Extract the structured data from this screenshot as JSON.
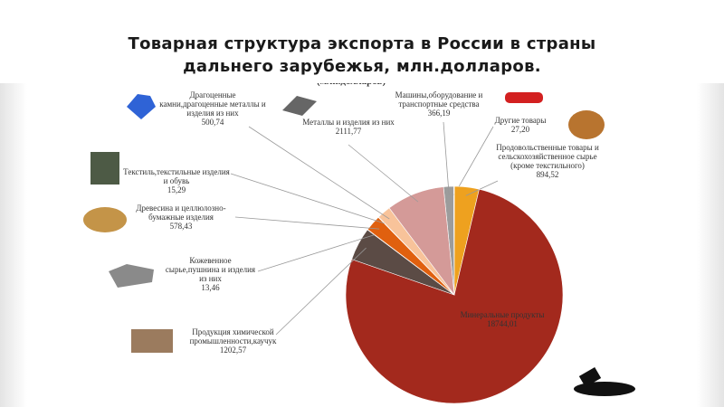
{
  "chart_data": {
    "type": "pie",
    "title": "Товарная структура экспорта в России в страны дальнего зарубежья, млн.долларов.",
    "subtitle": "(млн.долларов)",
    "categories": [
      "Машины,оборудование и транспортные средства",
      "Другие товары",
      "Продовольственные товары и сельскохозяйственное сырье (кроме текстильного)",
      "Минеральные продукты",
      "Продукция химической промышленности,каучук",
      "Кожевенное сырье,пушнина и изделия из них",
      "Древесина и целлюлозно-бумажные изделия",
      "Текстиль,текстильные изделия и обувь",
      "Драгоценные камни,драгоценные металлы и изделия из них",
      "Металлы и изделия из них"
    ],
    "values": [
      366.19,
      27.2,
      894.52,
      18744.01,
      1202.57,
      13.46,
      578.43,
      15.29,
      500.74,
      2111.77
    ],
    "value_labels": [
      "366,19",
      "27,20",
      "894,52",
      "18744,01",
      "1202,57",
      "13,46",
      "578,43",
      "15,29",
      "500,74",
      "2111,77"
    ],
    "colors": [
      "#9c9c9c",
      "#c8c8c8",
      "#eea11f",
      "#a3291d",
      "#5b4b45",
      "#bf3b1c",
      "#e0600f",
      "#f3ae5c",
      "#f8c39a",
      "#d49a98"
    ]
  }
}
